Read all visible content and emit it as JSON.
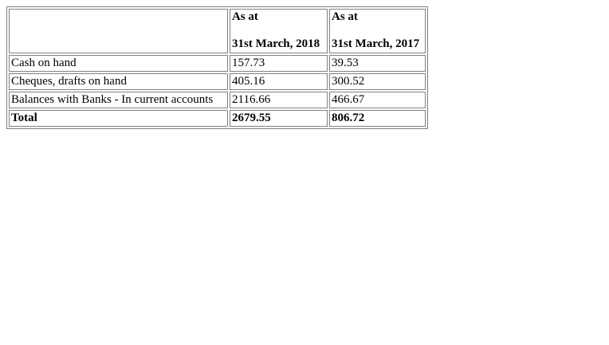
{
  "table": {
    "header": {
      "label": "",
      "col_2018": {
        "line1": "As at",
        "line2": "31st March, 2018"
      },
      "col_2017": {
        "line1": "As at",
        "line2": "31st March, 2017"
      }
    },
    "rows": [
      {
        "label": "Cash on hand",
        "v2018": "157.73",
        "v2017": "39.53"
      },
      {
        "label": "Cheques, drafts on hand",
        "v2018": "405.16",
        "v2017": "300.52"
      },
      {
        "label": "Balances with Banks - In current accounts",
        "v2018": "2116.66",
        "v2017": "466.67"
      }
    ],
    "total": {
      "label": "Total",
      "v2018": "2679.55",
      "v2017": "806.72"
    }
  }
}
